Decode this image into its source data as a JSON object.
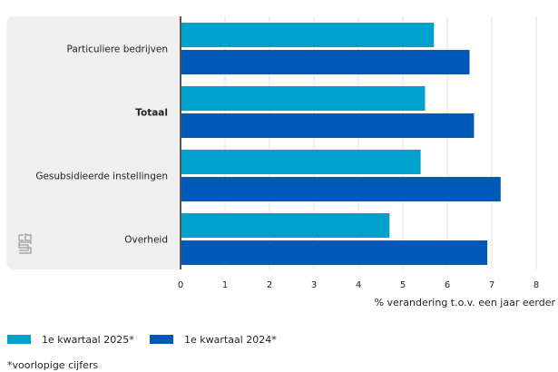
{
  "chart_data": {
    "type": "bar",
    "orientation": "horizontal",
    "categories": [
      "Particuliere bedrijven",
      "Totaal",
      "Gesubsidieerde instellingen",
      "Overheid"
    ],
    "bold_categories": [
      "Totaal"
    ],
    "series": [
      {
        "name": "1e kwartaal 2025*",
        "color": "#00a1cd",
        "values": [
          5.7,
          5.5,
          5.4,
          4.7
        ]
      },
      {
        "name": "1e kwartaal 2024*",
        "color": "#0058b8",
        "values": [
          6.5,
          6.6,
          7.2,
          6.9
        ]
      }
    ],
    "xlabel": "% verandering t.o.v. een jaar eerder",
    "xlim": [
      0,
      8
    ],
    "xticks": [
      "0",
      "1",
      "2",
      "3",
      "4",
      "5",
      "6",
      "7",
      "8"
    ],
    "grid": true,
    "legend": "bottom-left"
  },
  "footnote": "*voorlopige cijfers",
  "logo_text": "cbs"
}
